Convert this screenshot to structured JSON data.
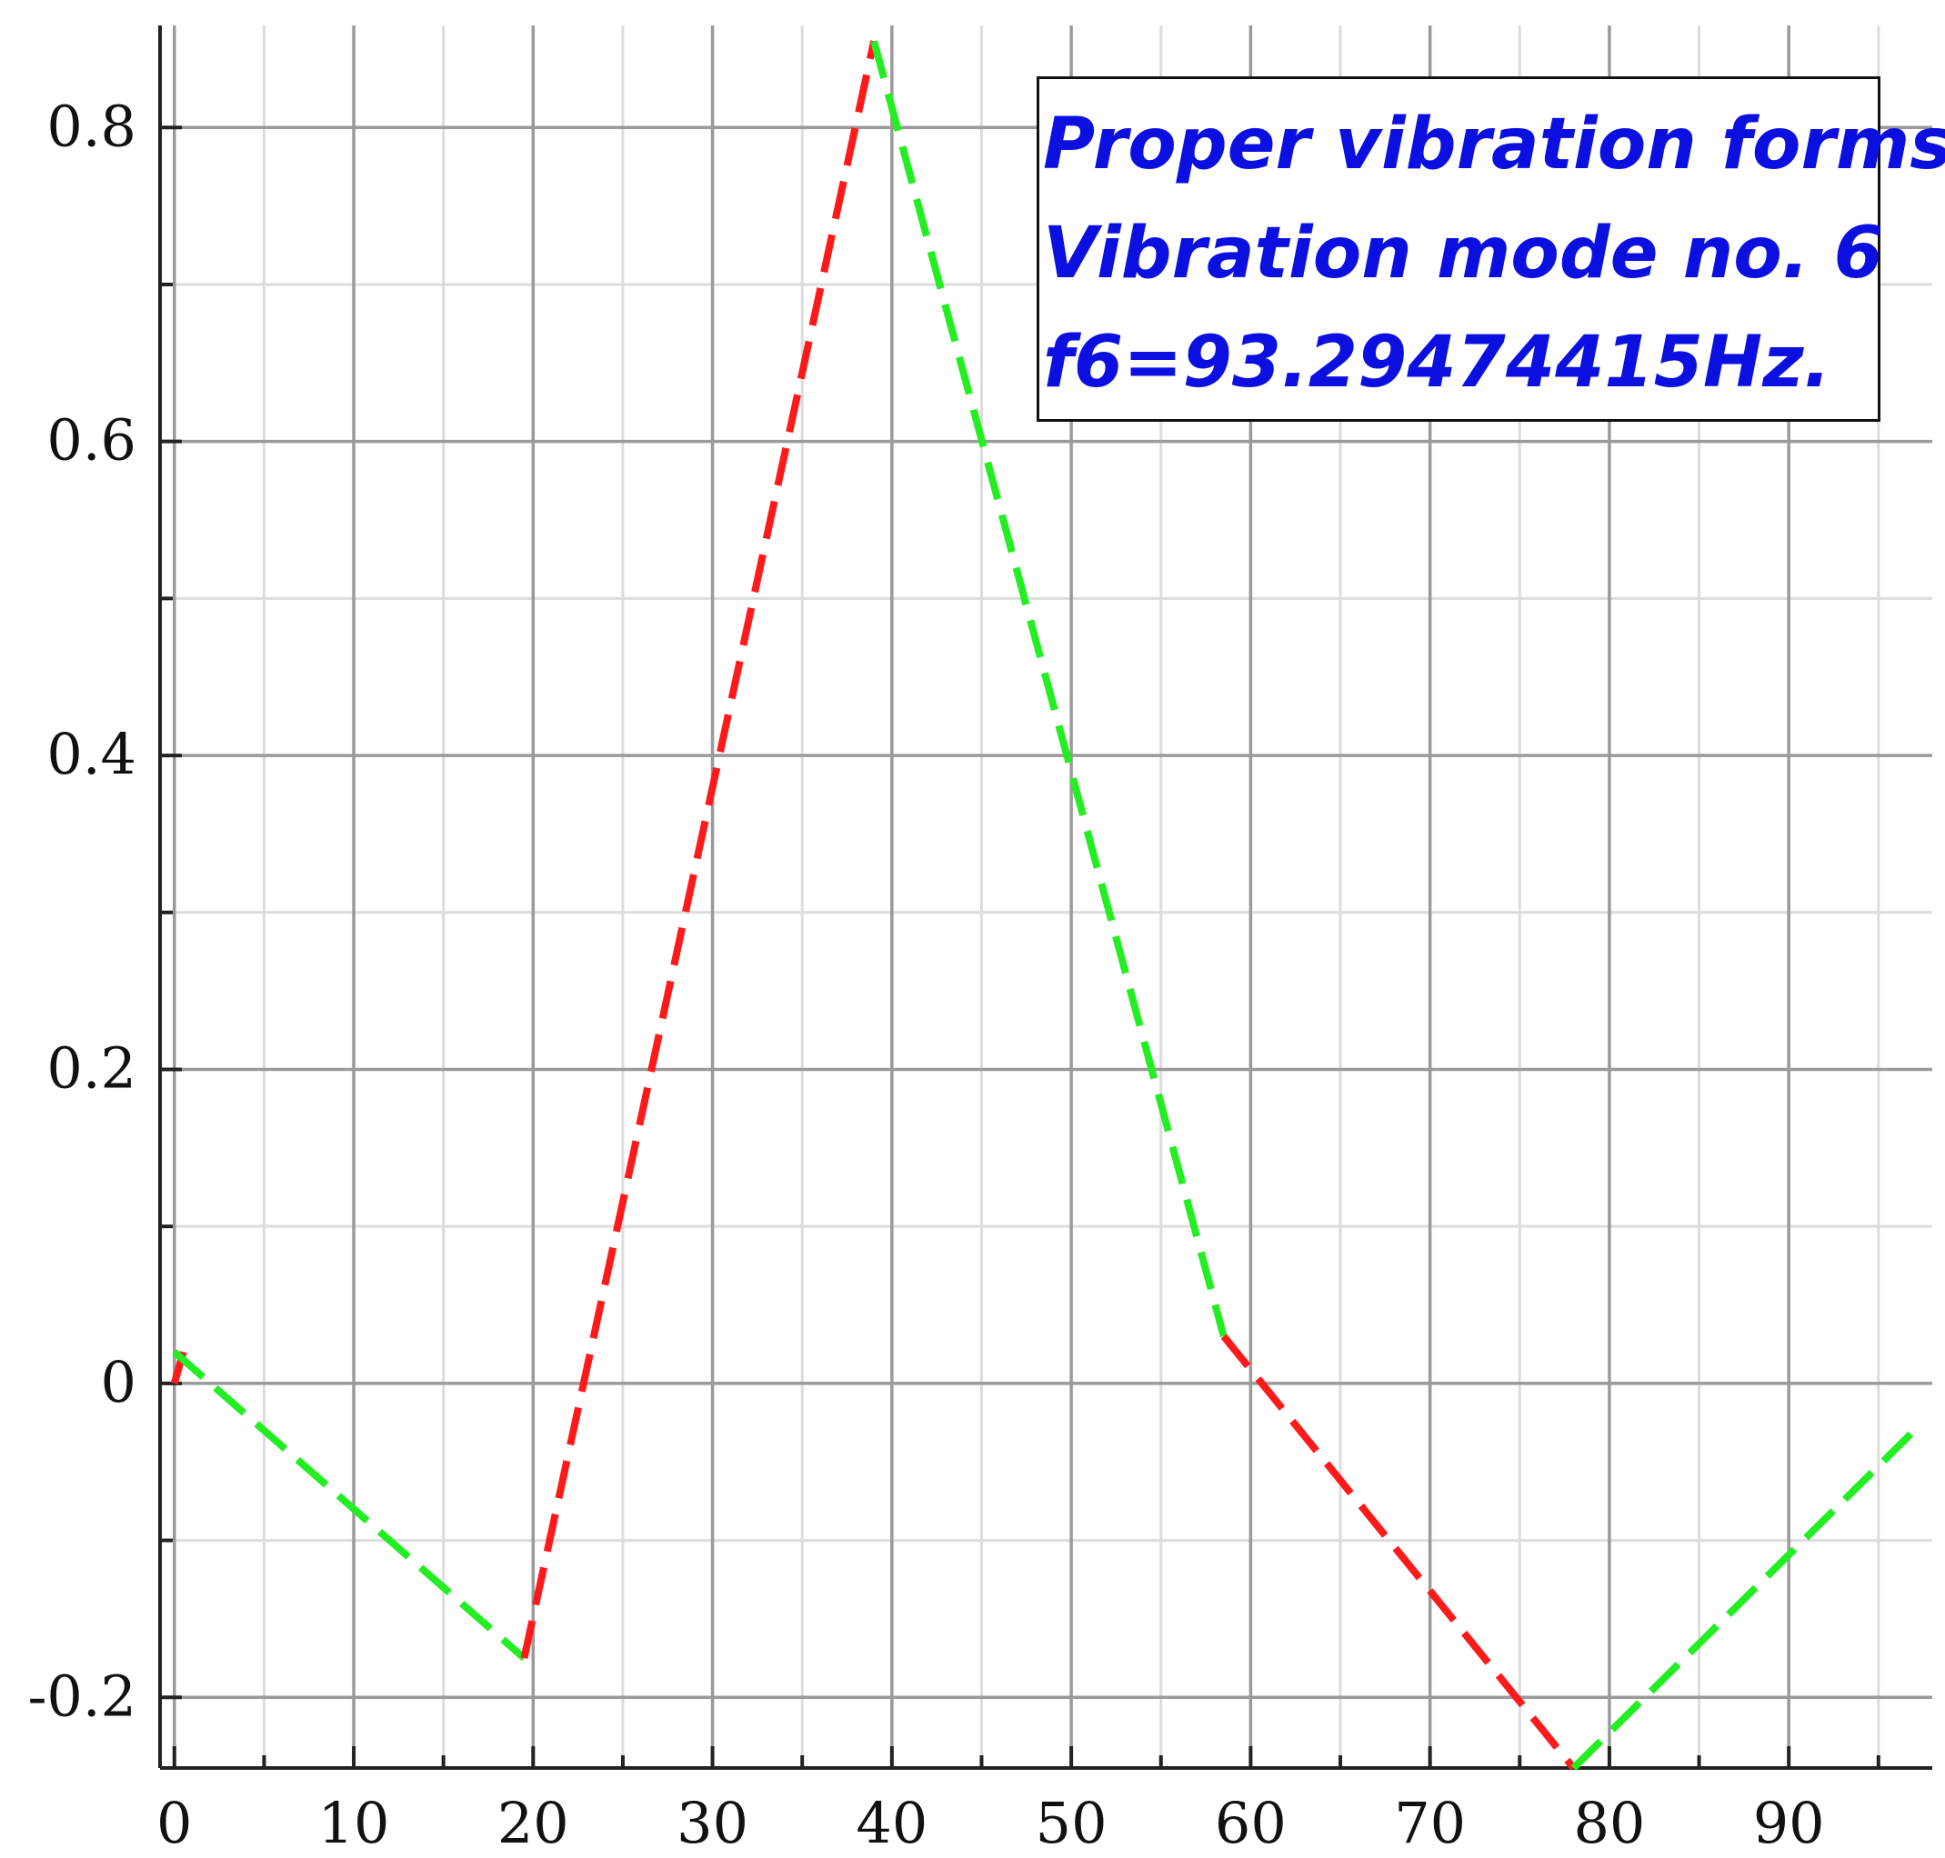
{
  "colors": {
    "background": "#ffffff",
    "grid_major": "#9a9a9a",
    "grid_minor": "#dcdcdc",
    "axis": "#222222",
    "segment_red": "#ff1a1a",
    "segment_green": "#22ee22",
    "annotation_text": "#0b10e0"
  },
  "annotation": {
    "line1": "Proper vibration forms.",
    "line2": "Vibration mode no. 6",
    "line3": "f6=93.29474415Hz."
  },
  "chart_data": {
    "type": "line",
    "xlim": [
      -0.8,
      98
    ],
    "ylim": [
      -0.245,
      0.865
    ],
    "x_ticks": [
      0,
      10,
      20,
      30,
      40,
      50,
      60,
      70,
      80,
      90
    ],
    "y_ticks": [
      -0.2,
      0,
      0.2,
      0.4,
      0.6,
      0.8
    ],
    "x_tick_labels": [
      "0",
      "10",
      "20",
      "30",
      "40",
      "50",
      "60",
      "70",
      "80",
      "90"
    ],
    "y_tick_labels": [
      "-0.2",
      "0",
      "0.2",
      "0.4",
      "0.6",
      "0.8"
    ],
    "grid": true,
    "line_style": "dashed",
    "segments": [
      {
        "color": "red",
        "x": [
          0,
          0.5
        ],
        "y": [
          0,
          0.02
        ]
      },
      {
        "color": "green",
        "x": [
          0,
          19.5
        ],
        "y": [
          0.02,
          -0.175
        ]
      },
      {
        "color": "red",
        "x": [
          19.5,
          39
        ],
        "y": [
          -0.175,
          0.855
        ]
      },
      {
        "color": "green",
        "x": [
          39,
          58.5
        ],
        "y": [
          0.855,
          0.03
        ]
      },
      {
        "color": "red",
        "x": [
          58.5,
          78
        ],
        "y": [
          0.03,
          -0.245
        ]
      },
      {
        "color": "green",
        "x": [
          78,
          97
        ],
        "y": [
          -0.245,
          -0.03
        ]
      }
    ]
  }
}
